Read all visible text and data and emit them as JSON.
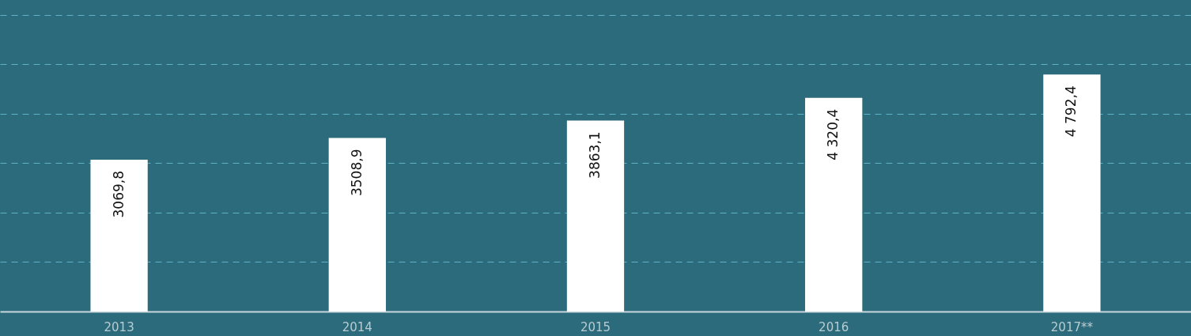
{
  "chart_data": {
    "type": "bar",
    "categories": [
      "2013",
      "2014",
      "2015",
      "2016",
      "2017**"
    ],
    "values": [
      3069.8,
      3508.9,
      3863.1,
      4320.4,
      4792.4
    ],
    "value_labels": [
      "3069,8",
      "3508,9",
      "3863,1",
      "4 320,4",
      "4 792,4"
    ],
    "color": "#ffffff",
    "ylim": [
      0,
      6300
    ],
    "yticks": [
      {
        "value": 1000,
        "label": null
      },
      {
        "value": 2000,
        "label": null
      },
      {
        "value": 3000,
        "label": null
      },
      {
        "value": 4000,
        "label": null
      },
      {
        "value": 5000,
        "label": null
      },
      {
        "value": 6000,
        "label": null
      }
    ],
    "grid": "y",
    "tick_labels": "x"
  }
}
